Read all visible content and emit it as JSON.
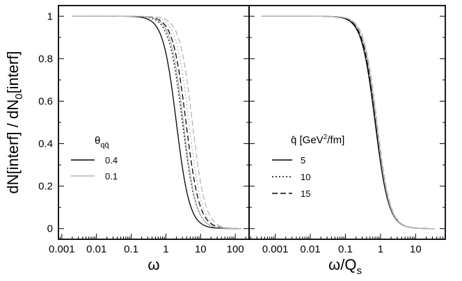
{
  "chart_data": [
    {
      "type": "line",
      "panel": "left",
      "xscale": "log",
      "xlim": [
        0.0008,
        250
      ],
      "ylim": [
        -0.05,
        1.05
      ],
      "xticks": [
        {
          "v": 0.001,
          "label": "0.001"
        },
        {
          "v": 0.01,
          "label": "0.01"
        },
        {
          "v": 0.1,
          "label": "0.1"
        },
        {
          "v": 1,
          "label": "1"
        },
        {
          "v": 10,
          "label": "10"
        },
        {
          "v": 100,
          "label": "100"
        }
      ],
      "yticks": [
        {
          "v": 0,
          "label": "0"
        },
        {
          "v": 0.2,
          "label": "0.2"
        },
        {
          "v": 0.4,
          "label": "0.4"
        },
        {
          "v": 0.6,
          "label": "0.6"
        },
        {
          "v": 0.8,
          "label": "0.8"
        },
        {
          "v": 1,
          "label": "1"
        }
      ],
      "xlabel": "ω",
      "ylabel": "dN[interf] / dN",
      "ylabel_sub": "0",
      "ylabel_suffix": "[interf]",
      "legend": {
        "title": "θ",
        "title_sub": "qq̄",
        "placement": "center-left",
        "entries": [
          {
            "label": "0.4",
            "color": "#000000"
          },
          {
            "label": "0.1",
            "color": "#b4b4b4"
          }
        ]
      },
      "x_start": 0.002,
      "x_end": 150,
      "series": [
        {
          "name": "θ=0.4, q̂=5",
          "theta": "0.4",
          "qhat": "5",
          "midpoint": 2.0,
          "slope": 2.25,
          "color": "#000000",
          "dash": "solid"
        },
        {
          "name": "θ=0.4, q̂=10",
          "theta": "0.4",
          "qhat": "10",
          "midpoint": 3.0,
          "slope": 2.25,
          "color": "#000000",
          "dash": "dotted"
        },
        {
          "name": "θ=0.4, q̂=15",
          "theta": "0.4",
          "qhat": "15",
          "midpoint": 3.8,
          "slope": 2.25,
          "color": "#000000",
          "dash": "dashed"
        },
        {
          "name": "θ=0.1, q̂=5",
          "theta": "0.1",
          "qhat": "5",
          "midpoint": 3.2,
          "slope": 2.35,
          "color": "#b4b4b4",
          "dash": "solid"
        },
        {
          "name": "θ=0.1, q̂=10",
          "theta": "0.1",
          "qhat": "10",
          "midpoint": 4.6,
          "slope": 2.35,
          "color": "#b4b4b4",
          "dash": "dotted"
        },
        {
          "name": "θ=0.1, q̂=15",
          "theta": "0.1",
          "qhat": "15",
          "midpoint": 5.8,
          "slope": 2.35,
          "color": "#b4b4b4",
          "dash": "dashed"
        }
      ]
    },
    {
      "type": "line",
      "panel": "right",
      "xscale": "log",
      "xlim": [
        0.00018,
        70
      ],
      "ylim": [
        -0.05,
        1.05
      ],
      "xticks": [
        {
          "v": 0.001,
          "label": "0.001"
        },
        {
          "v": 0.01,
          "label": "0.01"
        },
        {
          "v": 0.1,
          "label": "0.1"
        },
        {
          "v": 1,
          "label": "1"
        },
        {
          "v": 10,
          "label": "10"
        }
      ],
      "xlabel": "ω/Q",
      "xlabel_sub": "s",
      "legend": {
        "title": "q̂ [GeV",
        "title_sup": "2",
        "title_suffix": "/fm]",
        "placement": "center-left",
        "entries": [
          {
            "label": "5",
            "dash": "solid"
          },
          {
            "label": "10",
            "dash": "dotted"
          },
          {
            "label": "15",
            "dash": "dashed"
          }
        ]
      },
      "x_start": 0.0004,
      "x_end": 35,
      "series": [
        {
          "name": "θ=0.4, q̂=5",
          "midpoint": 0.7,
          "slope": 2.25,
          "color": "#000000",
          "dash": "solid"
        },
        {
          "name": "θ=0.4, q̂=10",
          "midpoint": 0.72,
          "slope": 2.25,
          "color": "#000000",
          "dash": "dotted"
        },
        {
          "name": "θ=0.4, q̂=15",
          "midpoint": 0.74,
          "slope": 2.25,
          "color": "#000000",
          "dash": "dashed"
        },
        {
          "name": "θ=0.1, q̂=5",
          "midpoint": 0.76,
          "slope": 2.35,
          "color": "#b4b4b4",
          "dash": "solid"
        },
        {
          "name": "θ=0.1, q̂=10",
          "midpoint": 0.78,
          "slope": 2.35,
          "color": "#b4b4b4",
          "dash": "dotted"
        },
        {
          "name": "θ=0.1, q̂=15",
          "midpoint": 0.8,
          "slope": 2.35,
          "color": "#b4b4b4",
          "dash": "dashed"
        }
      ]
    }
  ]
}
